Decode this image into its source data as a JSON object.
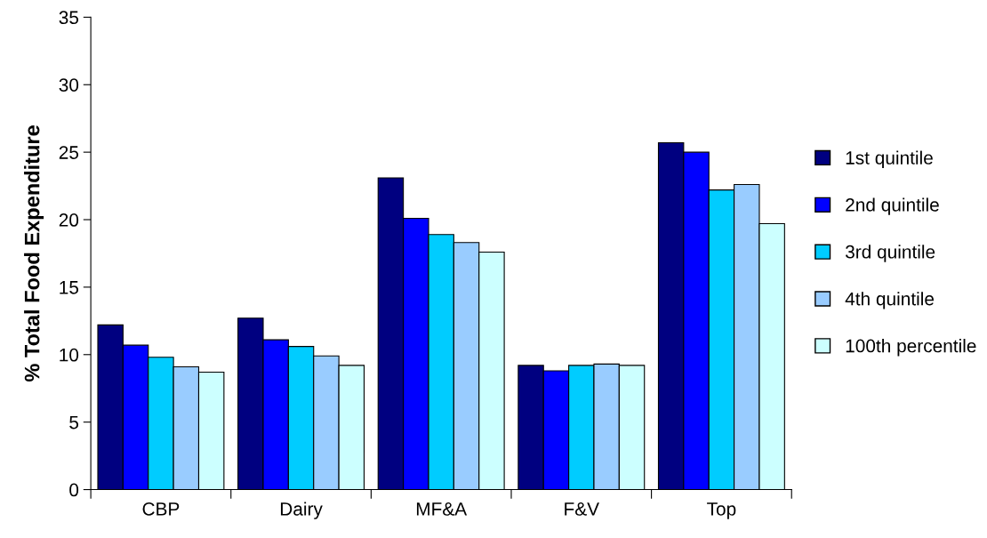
{
  "chart_data": {
    "type": "bar",
    "ylabel": "% Total Food Expenditure",
    "categories": [
      "CBP",
      "Dairy",
      "MF&A",
      "F&V",
      "Top"
    ],
    "series": [
      {
        "name": "1st quintile",
        "color": "#000080",
        "values": [
          12.2,
          12.7,
          23.1,
          9.2,
          25.7
        ]
      },
      {
        "name": "2nd quintile",
        "color": "#0000ff",
        "values": [
          10.7,
          11.1,
          20.1,
          8.8,
          25.0
        ]
      },
      {
        "name": "3rd quintile",
        "color": "#00ccff",
        "values": [
          9.8,
          10.6,
          18.9,
          9.2,
          22.2
        ]
      },
      {
        "name": "4th quintile",
        "color": "#99ccff",
        "values": [
          9.1,
          9.9,
          18.3,
          9.3,
          22.6
        ]
      },
      {
        "name": "100th percentile",
        "color": "#ccffff",
        "values": [
          8.7,
          9.2,
          17.6,
          9.2,
          19.7
        ]
      }
    ],
    "ylim": [
      0,
      35
    ],
    "yticks": [
      0,
      5,
      10,
      15,
      20,
      25,
      30,
      35
    ],
    "grid": false,
    "legend": "right"
  }
}
